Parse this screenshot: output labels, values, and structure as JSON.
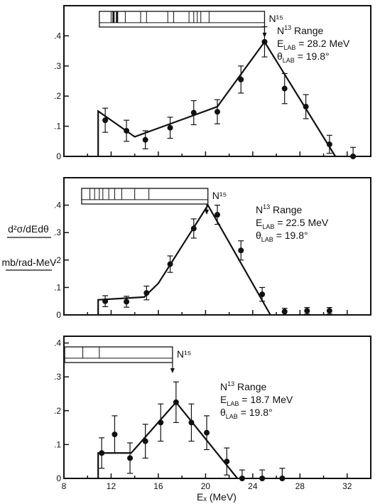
{
  "figure": {
    "ylabel_top": "d²σ/dEdθ",
    "ylabel_bottom": "mb/rad-MeV",
    "xlabel": "Eₓ  (MeV)",
    "xticks": [
      8,
      12,
      16,
      20,
      24,
      28,
      32
    ],
    "yticks": [
      0,
      0.1,
      0.2,
      0.3,
      0.4
    ],
    "ytick_labels": [
      "0",
      ".1",
      ".2",
      ".3",
      ".4"
    ]
  },
  "chart_data": [
    {
      "type": "scatter",
      "panel": "top",
      "xlim": [
        8,
        34
      ],
      "ylim": [
        0,
        0.5
      ],
      "range_label": "N¹⁵",
      "info": [
        "N¹³ Range",
        "E_LAB = 28.2 MeV",
        "θ_LAB = 19.8°"
      ],
      "info_lines": [
        {
          "main": "N",
          "sup": "13",
          "rest": " Range"
        },
        {
          "main": "E",
          "sub": "LAB",
          "rest": " = 28.2 MeV"
        },
        {
          "main": "θ",
          "sub": "LAB",
          "rest": " = 19.8°"
        }
      ],
      "range_bar": {
        "x_start": 11.0,
        "x_end": 25.0,
        "arrow_x": 25.0,
        "segments": [
          12.0,
          12.2,
          12.5,
          13.2,
          14.5,
          15.0,
          16.8,
          17.3,
          18.6,
          19.0,
          19.3,
          19.6,
          20.3
        ]
      },
      "points": [
        {
          "x": 11.5,
          "y": 0.12,
          "err": 0.04
        },
        {
          "x": 13.3,
          "y": 0.085,
          "err": 0.035
        },
        {
          "x": 14.9,
          "y": 0.055,
          "err": 0.03
        },
        {
          "x": 17.0,
          "y": 0.095,
          "err": 0.035
        },
        {
          "x": 19.0,
          "y": 0.145,
          "err": 0.04
        },
        {
          "x": 21.0,
          "y": 0.148,
          "err": 0.04
        },
        {
          "x": 23.0,
          "y": 0.255,
          "err": 0.045
        },
        {
          "x": 25.0,
          "y": 0.38,
          "err": 0.05
        },
        {
          "x": 26.7,
          "y": 0.225,
          "err": 0.05
        },
        {
          "x": 28.5,
          "y": 0.165,
          "err": 0.04
        },
        {
          "x": 30.5,
          "y": 0.04,
          "err": 0.03
        },
        {
          "x": 32.5,
          "y": 0.0,
          "err": 0.03
        }
      ],
      "fit_line": [
        [
          10.9,
          0.0
        ],
        [
          10.9,
          0.15
        ],
        [
          14.0,
          0.065
        ],
        [
          21.0,
          0.165
        ],
        [
          25.0,
          0.38
        ],
        [
          31.0,
          0.0
        ]
      ]
    },
    {
      "type": "scatter",
      "panel": "middle",
      "xlim": [
        8,
        34
      ],
      "ylim": [
        0,
        0.5
      ],
      "range_label": "N¹⁵",
      "info": [
        "N¹³ Range",
        "E_LAB = 22.5 MeV",
        "θ_LAB = 19.8°"
      ],
      "info_lines": [
        {
          "main": "N",
          "sup": "13",
          "rest": " Range"
        },
        {
          "main": "E",
          "sub": "LAB",
          "rest": " = 22.5 MeV"
        },
        {
          "main": "θ",
          "sub": "LAB",
          "rest": " = 19.8°"
        }
      ],
      "range_bar": {
        "x_start": 9.5,
        "x_end": 20.2,
        "arrow_x": 20.1,
        "segments": [
          10.2,
          10.6,
          11.0,
          11.3,
          11.8,
          12.3,
          12.9,
          14.0,
          15.2
        ]
      },
      "points": [
        {
          "x": 11.5,
          "y": 0.05,
          "err": 0.02
        },
        {
          "x": 13.3,
          "y": 0.048,
          "err": 0.02
        },
        {
          "x": 15.0,
          "y": 0.08,
          "err": 0.025
        },
        {
          "x": 17.0,
          "y": 0.185,
          "err": 0.03
        },
        {
          "x": 19.0,
          "y": 0.315,
          "err": 0.035
        },
        {
          "x": 21.0,
          "y": 0.365,
          "err": 0.035
        },
        {
          "x": 23.0,
          "y": 0.235,
          "err": 0.035
        },
        {
          "x": 24.8,
          "y": 0.075,
          "err": 0.025
        },
        {
          "x": 26.7,
          "y": 0.012,
          "err": 0.012
        },
        {
          "x": 28.6,
          "y": 0.015,
          "err": 0.012
        },
        {
          "x": 30.5,
          "y": 0.015,
          "err": 0.012
        }
      ],
      "fit_line": [
        [
          10.9,
          0.0
        ],
        [
          10.9,
          0.055
        ],
        [
          14.8,
          0.065
        ],
        [
          16.0,
          0.115
        ],
        [
          20.2,
          0.4
        ],
        [
          25.5,
          0.0
        ]
      ]
    },
    {
      "type": "scatter",
      "panel": "bottom",
      "xlim": [
        8,
        34
      ],
      "ylim": [
        0,
        0.42
      ],
      "range_label": "N¹⁵",
      "info": [
        "N¹³ Range",
        "E_LAB = 18.7 MeV",
        "θ_LAB = 19.8°"
      ],
      "info_lines": [
        {
          "main": "N",
          "sup": "13",
          "rest": " Range"
        },
        {
          "main": "E",
          "sub": "LAB",
          "rest": " = 18.7 MeV"
        },
        {
          "main": "θ",
          "sub": "LAB",
          "rest": " = 19.8°"
        }
      ],
      "range_bar": {
        "x_start": 8.0,
        "x_end": 17.2,
        "arrow_x": 17.2,
        "segments": [
          9.6,
          11.0
        ]
      },
      "points": [
        {
          "x": 11.2,
          "y": 0.075,
          "err": 0.045
        },
        {
          "x": 12.3,
          "y": 0.13,
          "err": 0.055
        },
        {
          "x": 13.6,
          "y": 0.06,
          "err": 0.045
        },
        {
          "x": 14.9,
          "y": 0.11,
          "err": 0.05
        },
        {
          "x": 16.2,
          "y": 0.165,
          "err": 0.055
        },
        {
          "x": 17.5,
          "y": 0.225,
          "err": 0.06
        },
        {
          "x": 18.8,
          "y": 0.165,
          "err": 0.055
        },
        {
          "x": 20.1,
          "y": 0.135,
          "err": 0.05
        },
        {
          "x": 21.8,
          "y": 0.05,
          "err": 0.04
        },
        {
          "x": 23.1,
          "y": 0.0,
          "err": 0.025
        },
        {
          "x": 24.8,
          "y": 0.0,
          "err": 0.025
        },
        {
          "x": 26.5,
          "y": 0.0,
          "err": 0.03
        }
      ],
      "fit_line": [
        [
          10.9,
          0.0
        ],
        [
          10.9,
          0.075
        ],
        [
          13.7,
          0.075
        ],
        [
          17.5,
          0.225
        ],
        [
          22.7,
          0.0
        ]
      ]
    }
  ]
}
